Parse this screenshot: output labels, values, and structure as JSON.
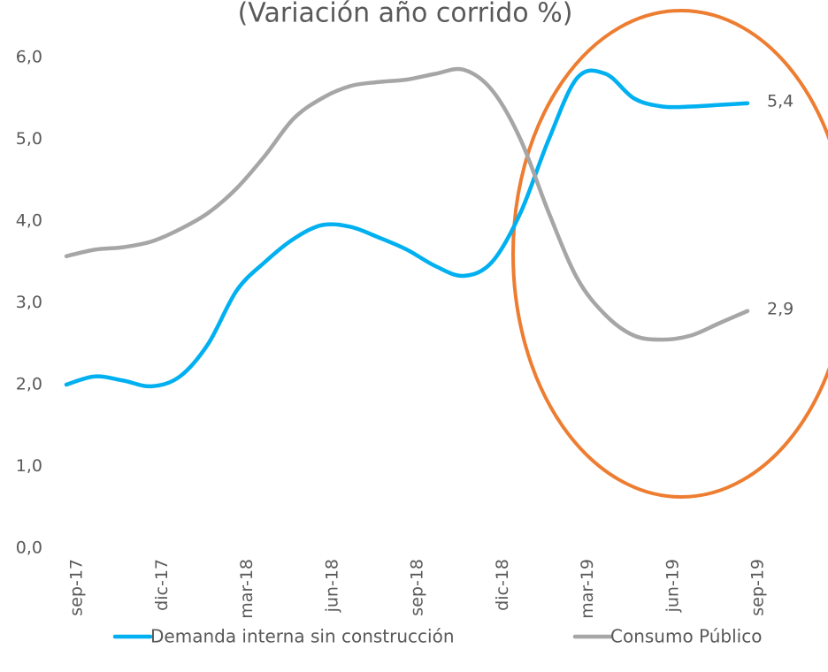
{
  "chart_data": {
    "type": "line",
    "title": "(Variación año corrido %)",
    "categories": [
      "sep-17",
      null,
      null,
      "dic-17",
      null,
      null,
      "mar-18",
      null,
      null,
      "jun-18",
      null,
      null,
      "sep-18",
      null,
      null,
      "dic-18",
      null,
      null,
      "mar-19",
      null,
      null,
      "jun-19",
      null,
      null,
      "sep-19"
    ],
    "series": [
      {
        "name": "Demanda interna sin construcción",
        "color": "#00b0f0",
        "values": [
          2.0,
          2.1,
          2.05,
          1.98,
          2.1,
          2.5,
          3.15,
          3.5,
          3.78,
          3.95,
          3.93,
          3.8,
          3.65,
          3.45,
          3.33,
          3.5,
          4.1,
          5.0,
          5.75,
          5.8,
          5.5,
          5.4,
          5.4,
          5.42,
          5.44
        ],
        "value_labels": [
          null,
          null,
          null,
          null,
          null,
          null,
          null,
          null,
          null,
          null,
          null,
          null,
          null,
          null,
          null,
          null,
          null,
          null,
          null,
          null,
          null,
          null,
          null,
          null,
          "5,4"
        ]
      },
      {
        "name": "Consumo Público",
        "color": "#a6a6a6",
        "values": [
          3.57,
          3.65,
          3.68,
          3.75,
          3.9,
          4.1,
          4.4,
          4.8,
          5.25,
          5.5,
          5.65,
          5.7,
          5.73,
          5.8,
          5.85,
          5.6,
          5.0,
          4.1,
          3.3,
          2.85,
          2.6,
          2.55,
          2.6,
          2.75,
          2.9
        ],
        "value_labels": [
          null,
          null,
          null,
          null,
          null,
          null,
          null,
          null,
          null,
          null,
          null,
          null,
          null,
          null,
          null,
          null,
          null,
          null,
          null,
          null,
          null,
          null,
          null,
          null,
          "2,9"
        ]
      }
    ],
    "ylim": [
      0,
      6
    ],
    "yticks": [
      {
        "value": 0,
        "label": "0,0"
      },
      {
        "value": 1,
        "label": "1,0"
      },
      {
        "value": 2,
        "label": "2,0"
      },
      {
        "value": 3,
        "label": "3,0"
      },
      {
        "value": 4,
        "label": "4,0"
      },
      {
        "value": 5,
        "label": "5,0"
      },
      {
        "value": 6,
        "label": "6,0"
      }
    ],
    "grid": false,
    "legend": "bottom"
  }
}
